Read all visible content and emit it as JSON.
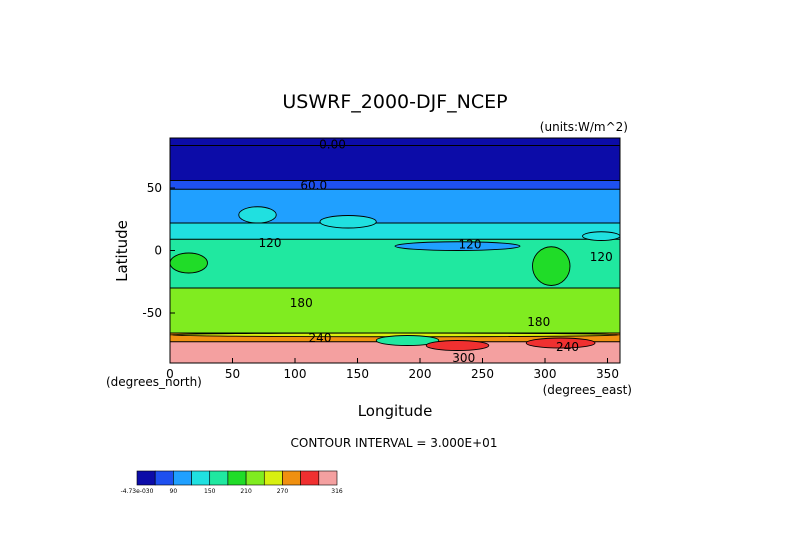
{
  "chart_data": {
    "type": "heatmap",
    "title": "USWRF_2000-DJF_NCEP",
    "units_label": "(units:W/m^2)",
    "xlabel": "Longitude",
    "ylabel": "Latitude",
    "x_unit_note": "(degrees_east)",
    "y_unit_note": "(degrees_north)",
    "xlim": [
      0,
      360
    ],
    "ylim": [
      -90,
      90
    ],
    "x_ticks": [
      "0",
      "50",
      "100",
      "150",
      "200",
      "250",
      "300",
      "350"
    ],
    "x_tick_values": [
      0,
      50,
      100,
      150,
      200,
      250,
      300,
      350
    ],
    "y_ticks": [
      "50",
      "0",
      "-50"
    ],
    "y_tick_values": [
      50,
      0,
      -50
    ],
    "contour_interval_text": "CONTOUR INTERVAL = 3.000E+01",
    "contour_labels": [
      {
        "text": "0.00",
        "lon": 130,
        "lat": 85
      },
      {
        "text": "60.0",
        "lon": 115,
        "lat": 52
      },
      {
        "text": "120",
        "lon": 80,
        "lat": 6
      },
      {
        "text": "120",
        "lon": 240,
        "lat": 5
      },
      {
        "text": "120",
        "lon": 345,
        "lat": -5
      },
      {
        "text": "180",
        "lon": 105,
        "lat": -42
      },
      {
        "text": "180",
        "lon": 295,
        "lat": -57
      },
      {
        "text": "240",
        "lon": 120,
        "lat": -70
      },
      {
        "text": "240",
        "lon": 318,
        "lat": -77
      },
      {
        "text": "300",
        "lon": 235,
        "lat": -86
      }
    ],
    "levels": [
      0,
      30,
      60,
      90,
      120,
      150,
      180,
      210,
      240,
      270,
      300
    ],
    "colorbar": {
      "labels": [
        "-4.73e-030",
        "90",
        "150",
        "210",
        "270",
        "316"
      ],
      "colors": [
        "#0c0ca8",
        "#1e50f0",
        "#20a0ff",
        "#20e0e0",
        "#20e8a0",
        "#20dc28",
        "#80ec20",
        "#d8f010",
        "#f09010",
        "#f03030",
        "#f4a0a0"
      ]
    },
    "zonal_bands": [
      {
        "lat_from": 90,
        "lat_to": 84,
        "value": 0
      },
      {
        "lat_from": 84,
        "lat_to": 56,
        "value": 15
      },
      {
        "lat_from": 56,
        "lat_to": 49,
        "value": 45
      },
      {
        "lat_from": 49,
        "lat_to": 22,
        "value": 75
      },
      {
        "lat_from": 22,
        "lat_to": 9,
        "value": 105
      },
      {
        "lat_from": 9,
        "lat_to": -30,
        "value": 135
      },
      {
        "lat_from": -30,
        "lat_to": -66,
        "value": 195
      },
      {
        "lat_from": -66,
        "lat_to": -73,
        "value": 255
      },
      {
        "lat_from": -73,
        "lat_to": -90,
        "value": 300
      }
    ],
    "features": [
      {
        "lon_from": 180,
        "lon_to": 280,
        "lat_from": 7,
        "lat_to": 0,
        "value": 75
      },
      {
        "lon_from": 290,
        "lon_to": 320,
        "lat_from": 3,
        "lat_to": -28,
        "value": 165
      },
      {
        "lon_from": 0,
        "lon_to": 30,
        "lat_from": -2,
        "lat_to": -18,
        "value": 165
      },
      {
        "lon_from": 55,
        "lon_to": 85,
        "lat_from": 35,
        "lat_to": 22,
        "value": 105
      },
      {
        "lon_from": 120,
        "lon_to": 165,
        "lat_from": 28,
        "lat_to": 18,
        "value": 105
      },
      {
        "lon_from": 330,
        "lon_to": 360,
        "lat_from": 15,
        "lat_to": 8,
        "value": 105
      },
      {
        "lon_from": 0,
        "lon_to": 360,
        "lat_from": -66,
        "lat_to": -69,
        "value": 225
      },
      {
        "lon_from": 165,
        "lon_to": 215,
        "lat_from": -68,
        "lat_to": -76,
        "value": 135
      },
      {
        "lon_from": 205,
        "lon_to": 255,
        "lat_from": -72,
        "lat_to": -80,
        "value": 285
      },
      {
        "lon_from": 285,
        "lon_to": 340,
        "lat_from": -70,
        "lat_to": -78,
        "value": 285
      }
    ]
  }
}
